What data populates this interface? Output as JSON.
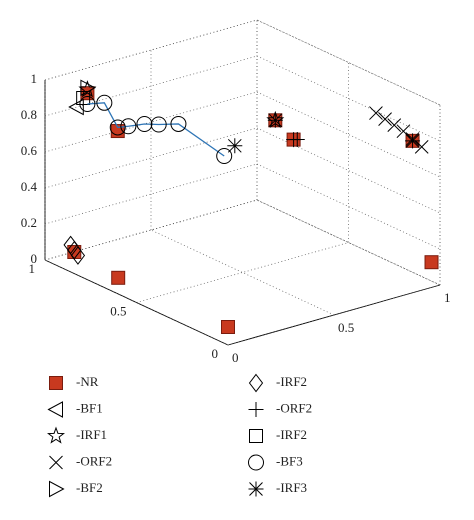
{
  "chart_data": {
    "type": "scatter3d",
    "xlim": [
      0,
      1
    ],
    "ylim": [
      0,
      1
    ],
    "zlim": [
      0,
      1
    ],
    "xticks": [
      0,
      0.5,
      1
    ],
    "yticks": [
      0,
      0.5,
      1
    ],
    "zticks": [
      0,
      0.2,
      0.4,
      0.6,
      0.8,
      1
    ],
    "grid": true,
    "series": [
      {
        "name": "-NR",
        "marker": "square-filled",
        "color": "#c8391f",
        "x": [
          0,
          0,
          0,
          0.96,
          0.2,
          0.3,
          1,
          1,
          1
        ],
        "y": [
          0,
          0.6,
          0.84,
          0,
          1,
          0.95,
          0.9,
          0.8,
          0.15
        ],
        "z": [
          0.1,
          0.09,
          0.12,
          0.14,
          0.86,
          0.64,
          0.49,
          0.43,
          0.73
        ]
      },
      {
        "name": "-BF1",
        "marker": "triangle-left",
        "color": "#000000",
        "x": [
          0.15
        ],
        "y": [
          1
        ],
        "z": [
          0.8
        ]
      },
      {
        "name": "-IRF1",
        "marker": "star",
        "color": "#000000",
        "x": [
          0.2,
          1
        ],
        "y": [
          1,
          0.9
        ],
        "z": [
          0.88,
          0.49
        ]
      },
      {
        "name": "-ORF2",
        "marker": "x",
        "color": "#000000",
        "x": [
          1,
          1,
          1,
          1,
          1,
          1
        ],
        "y": [
          0.35,
          0.3,
          0.25,
          0.2,
          0.15,
          0.1
        ],
        "z": [
          0.79,
          0.78,
          0.77,
          0.76,
          0.74,
          0.72
        ]
      },
      {
        "name": "-BF2",
        "marker": "triangle-right",
        "color": "#000000",
        "x": [
          0.2
        ],
        "y": [
          1
        ],
        "z": [
          0.89
        ]
      },
      {
        "name": "-IRF2",
        "marker": "diamond",
        "color": "#000000",
        "x": [
          0,
          0,
          0
        ],
        "y": [
          0.86,
          0.84,
          0.82
        ],
        "z": [
          0.15,
          0.13,
          0.11
        ]
      },
      {
        "name": "-ORF2",
        "marker": "plus",
        "color": "#000000",
        "x": [
          1,
          1
        ],
        "y": [
          0.8,
          0.78
        ],
        "z": [
          0.43,
          0.44
        ]
      },
      {
        "name": "-IRF2",
        "marker": "square",
        "color": "#000000",
        "x": [
          0.18
        ],
        "y": [
          1
        ],
        "z": [
          0.84
        ]
      },
      {
        "name": "-BF3",
        "marker": "circle",
        "color": "#000000",
        "line_color": "#2e75b6",
        "x": [
          0.2,
          0.28,
          0.3,
          0.35,
          0.4,
          0.45,
          0.5,
          0.5
        ],
        "y": [
          1,
          1,
          0.95,
          0.95,
          0.92,
          0.9,
          0.85,
          0.6
        ],
        "z": [
          0.8,
          0.78,
          0.66,
          0.65,
          0.66,
          0.65,
          0.66,
          0.6
        ]
      },
      {
        "name": "-IRF3",
        "marker": "asterisk",
        "color": "#000000",
        "x": [
          0.55,
          1,
          1
        ],
        "y": [
          0.6,
          0.9,
          0.15
        ],
        "z": [
          0.64,
          0.49,
          0.73
        ]
      }
    ]
  }
}
